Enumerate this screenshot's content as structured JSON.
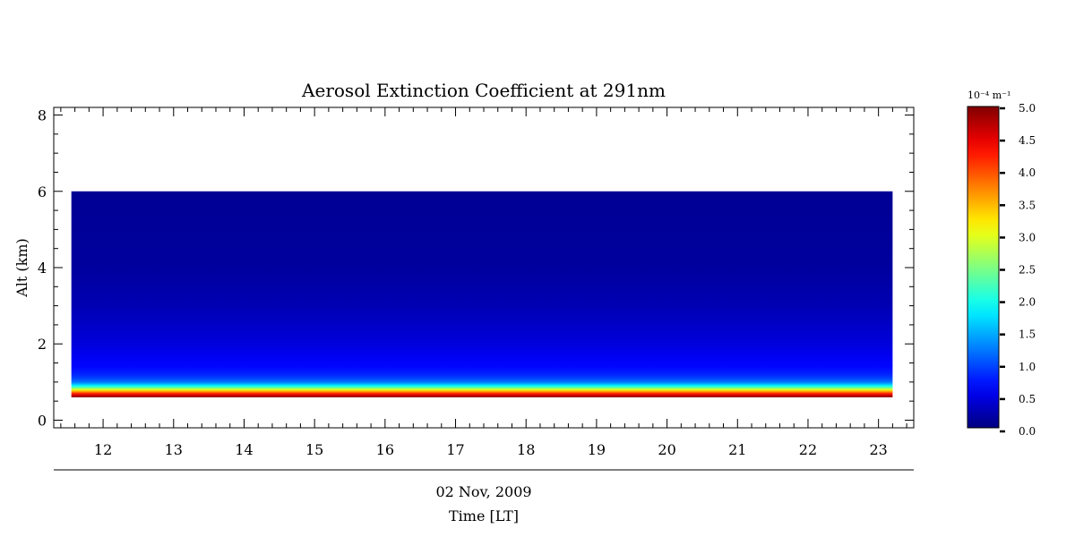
{
  "chart_data": {
    "type": "heatmap",
    "title": "Aerosol Extinction Coefficient at 291nm",
    "xlabel": "Time [LT]",
    "date_label": "02 Nov, 2009",
    "ylabel": "Alt (km)",
    "xlim": [
      11.3,
      23.5
    ],
    "ylim": [
      -0.2,
      8.2
    ],
    "x_ticks": [
      12,
      13,
      14,
      15,
      16,
      17,
      18,
      19,
      20,
      21,
      22,
      23
    ],
    "y_ticks": [
      0,
      2,
      4,
      6,
      8
    ],
    "data_x_range": [
      11.55,
      23.2
    ],
    "data_y_range": [
      0.6,
      6.0
    ],
    "colorbar": {
      "unit_label": "10⁻⁴ m⁻¹",
      "range": [
        0.0,
        5.0
      ],
      "ticks": [
        "0.0",
        "0.5",
        "1.0",
        "1.5",
        "2.0",
        "2.5",
        "3.0",
        "3.5",
        "4.0",
        "4.5",
        "5.0"
      ],
      "colormap": "jet"
    },
    "profile": {
      "altitude_km": [
        0.6,
        0.65,
        0.7,
        0.75,
        0.8,
        0.85,
        0.9,
        0.95,
        1.0,
        1.1,
        1.2,
        1.4,
        1.7,
        2.0,
        2.5,
        3.0,
        4.0,
        6.0
      ],
      "extinction": [
        5.0,
        4.6,
        4.2,
        3.6,
        3.0,
        2.4,
        1.9,
        1.5,
        1.2,
        0.95,
        0.8,
        0.65,
        0.55,
        0.45,
        0.35,
        0.25,
        0.15,
        0.1
      ]
    },
    "grid": false,
    "legend": "colorbar right"
  }
}
